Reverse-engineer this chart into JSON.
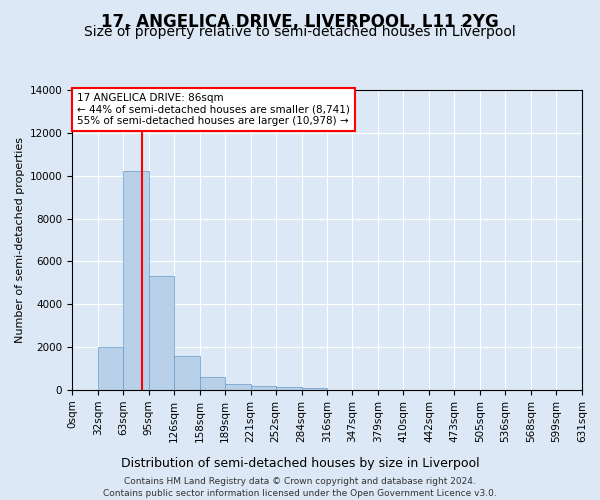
{
  "title": "17, ANGELICA DRIVE, LIVERPOOL, L11 2YG",
  "subtitle": "Size of property relative to semi-detached houses in Liverpool",
  "xlabel": "Distribution of semi-detached houses by size in Liverpool",
  "ylabel": "Number of semi-detached properties",
  "footer_line1": "Contains HM Land Registry data © Crown copyright and database right 2024.",
  "footer_line2": "Contains public sector information licensed under the Open Government Licence v3.0.",
  "bar_edges": [
    0,
    32,
    63,
    95,
    126,
    158,
    189,
    221,
    252,
    284,
    316,
    347,
    379,
    410,
    442,
    473,
    505,
    536,
    568,
    599,
    631
  ],
  "bar_heights": [
    0,
    2000,
    10200,
    5300,
    1600,
    620,
    280,
    170,
    140,
    100,
    0,
    0,
    0,
    0,
    0,
    0,
    0,
    0,
    0,
    0
  ],
  "bar_color": "#b8d0e8",
  "bar_edgecolor": "#6699cc",
  "property_size": 86,
  "vline_color": "red",
  "annotation_text_line1": "17 ANGELICA DRIVE: 86sqm",
  "annotation_text_line2": "← 44% of semi-detached houses are smaller (8,741)",
  "annotation_text_line3": "55% of semi-detached houses are larger (10,978) →",
  "annotation_box_facecolor": "white",
  "annotation_box_edgecolor": "red",
  "ylim": [
    0,
    14000
  ],
  "yticks": [
    0,
    2000,
    4000,
    6000,
    8000,
    10000,
    12000,
    14000
  ],
  "bg_color": "#dce8f5",
  "axes_bg_color": "#dce8f5",
  "grid_color": "white",
  "title_fontsize": 12,
  "subtitle_fontsize": 10,
  "xlabel_fontsize": 9,
  "ylabel_fontsize": 8,
  "tick_fontsize": 7.5,
  "annotation_fontsize": 7.5,
  "footer_fontsize": 6.5
}
